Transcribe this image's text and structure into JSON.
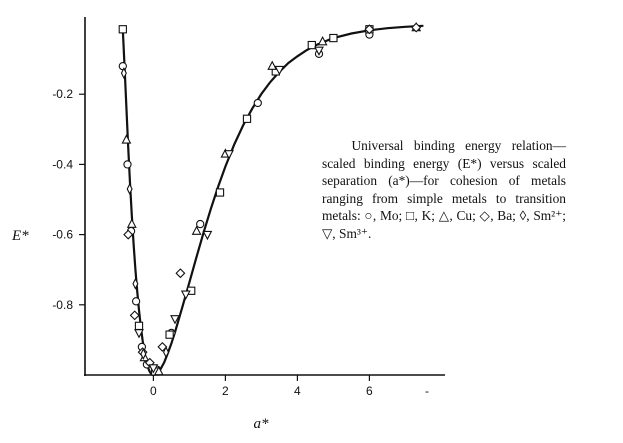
{
  "chart_data": {
    "type": "scatter",
    "xlabel": "a*",
    "ylabel": "E*",
    "xlim": [
      -1.9,
      8.1
    ],
    "ylim": [
      -1.0,
      0.02
    ],
    "x_ticks": [
      0,
      2,
      4,
      6
    ],
    "y_ticks": [
      -0.2,
      -0.4,
      -0.6,
      -0.8
    ],
    "x_tick_labels": [
      "0",
      "2",
      "4",
      "6"
    ],
    "y_tick_labels": [
      "-0.2",
      "-0.4",
      "-0.6",
      "-0.8"
    ],
    "extra_x_tick_label": "-",
    "grid": false,
    "legend": "text caption at right",
    "curve": {
      "name": "universal binding energy relation",
      "x": [
        -0.85,
        -0.8,
        -0.75,
        -0.7,
        -0.65,
        -0.6,
        -0.55,
        -0.5,
        -0.45,
        -0.4,
        -0.35,
        -0.3,
        -0.25,
        -0.2,
        -0.15,
        -0.1,
        -0.05,
        0,
        0.1,
        0.2,
        0.3,
        0.4,
        0.5,
        0.6,
        0.8,
        1.0,
        1.2,
        1.4,
        1.6,
        1.8,
        2.0,
        2.25,
        2.5,
        2.75,
        3.0,
        3.25,
        3.5,
        3.75,
        4.0,
        4.25,
        4.5,
        4.75,
        5.0,
        5.5,
        6.0,
        6.5,
        7.0,
        7.5
      ],
      "y": [
        -0.016,
        -0.124,
        -0.238,
        -0.351,
        -0.453,
        -0.545,
        -0.627,
        -0.699,
        -0.761,
        -0.815,
        -0.862,
        -0.901,
        -0.934,
        -0.96,
        -0.979,
        -0.991,
        -0.998,
        -1.0,
        -0.995,
        -0.983,
        -0.964,
        -0.938,
        -0.91,
        -0.878,
        -0.808,
        -0.736,
        -0.663,
        -0.592,
        -0.525,
        -0.463,
        -0.406,
        -0.342,
        -0.287,
        -0.24,
        -0.199,
        -0.165,
        -0.136,
        -0.111,
        -0.092,
        -0.075,
        -0.061,
        -0.05,
        -0.04,
        -0.027,
        -0.018,
        -0.012,
        -0.008,
        -0.005
      ]
    },
    "series": [
      {
        "marker": "circle",
        "x": [
          -0.85,
          -0.72,
          -0.62,
          -0.48,
          -0.32,
          -0.18,
          0.1,
          0.5,
          1.3,
          2.9,
          4.6,
          6.0
        ],
        "y": [
          -0.12,
          -0.4,
          -0.59,
          -0.79,
          -0.92,
          -0.97,
          -0.985,
          -0.88,
          -0.57,
          -0.225,
          -0.085,
          -0.03
        ]
      },
      {
        "marker": "square",
        "x": [
          -0.85,
          -0.4,
          0.05,
          0.45,
          1.05,
          1.85,
          2.6,
          3.4,
          4.4,
          5.0,
          6.0
        ],
        "y": [
          -0.015,
          -0.86,
          -0.99,
          -0.885,
          -0.76,
          -0.48,
          -0.27,
          -0.135,
          -0.06,
          -0.04,
          -0.015
        ]
      },
      {
        "marker": "triangle-up",
        "x": [
          -0.75,
          -0.6,
          -0.25,
          0.15,
          1.2,
          2.0,
          3.3,
          4.7,
          7.3
        ],
        "y": [
          -0.33,
          -0.57,
          -0.95,
          -0.99,
          -0.59,
          -0.37,
          -0.12,
          -0.05,
          -0.01
        ]
      },
      {
        "marker": "diamond",
        "x": [
          -0.7,
          -0.52,
          -0.3,
          -0.1,
          0.25,
          0.75,
          6.0,
          7.3
        ],
        "y": [
          -0.6,
          -0.83,
          -0.935,
          -0.965,
          -0.92,
          -0.71,
          -0.015,
          -0.01
        ]
      },
      {
        "marker": "diamond-narrow",
        "x": [
          -0.82,
          -0.66,
          -0.5,
          -0.28,
          0.35
        ],
        "y": [
          -0.14,
          -0.47,
          -0.74,
          -0.94,
          -0.935
        ]
      },
      {
        "marker": "triangle-down",
        "x": [
          -0.4,
          0.0,
          0.6,
          0.9,
          1.5,
          2.1,
          3.5,
          4.6
        ],
        "y": [
          -0.88,
          -0.98,
          -0.84,
          -0.77,
          -0.6,
          -0.37,
          -0.13,
          -0.075
        ]
      }
    ]
  },
  "caption": {
    "text": "Universal binding energy relation—scaled binding energy (E*) versus scaled separation (a*)—for cohesion of metals ranging from simple metals to transition metals: ○, Mo; □, K; △, Cu; ◇, Ba; ◊, Sm²⁺; ▽, Sm³⁺."
  }
}
